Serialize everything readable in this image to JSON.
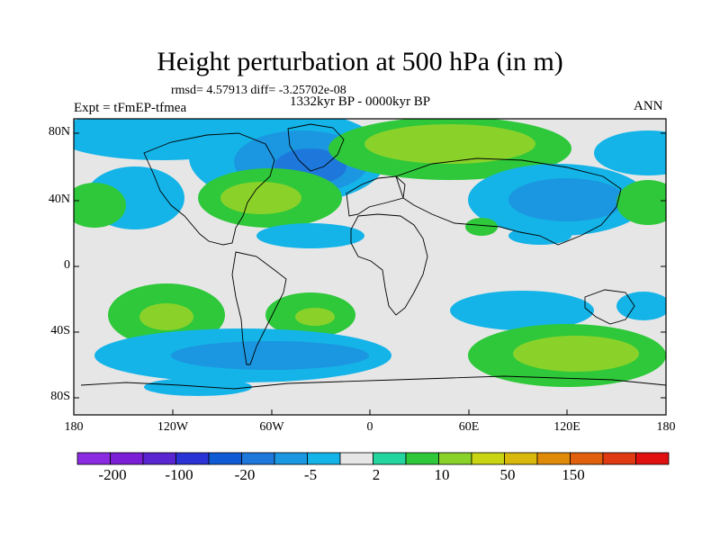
{
  "title": "Height perturbation at 500 hPa (in m)",
  "stats": "rmsd= 4.57913  diff= -3.25702e-08",
  "period": "1332kyr BP - 0000kyr BP",
  "expt": "Expt = tFmEP-tfmea",
  "season": "ANN",
  "lat_labels": [
    "80N",
    "40N",
    "0",
    "40S",
    "80S"
  ],
  "lon_labels": [
    "180",
    "120W",
    "60W",
    "0",
    "60E",
    "120E",
    "180"
  ],
  "colorbar": {
    "colors": [
      "#8a2be2",
      "#7b1fd6",
      "#5a24d0",
      "#2a34d6",
      "#0f5bd6",
      "#1e78dc",
      "#1b96e0",
      "#14b4e8",
      "#e6e6e6",
      "#25d5a0",
      "#2ec83a",
      "#8ad22a",
      "#c9d413",
      "#d9b80c",
      "#e08a0a",
      "#e0600e",
      "#e03a12",
      "#e01010"
    ],
    "labels": [
      "-200",
      "-100",
      "-20",
      "-5",
      "2",
      "10",
      "50",
      "150"
    ]
  }
}
